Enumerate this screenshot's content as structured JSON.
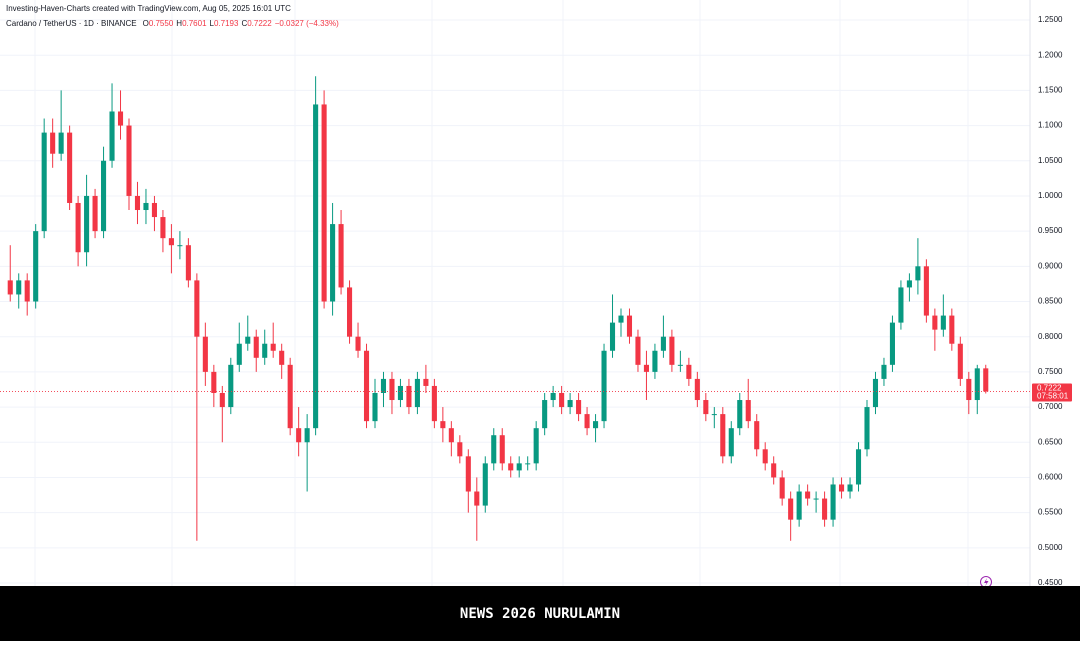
{
  "chart_data": {
    "type": "candlestick",
    "title": "Investing-Haven-Charts created with TradingView.com, Aug 05, 2025 16:01 UTC",
    "symbol": "Cardano / TetherUS · 1D · BINANCE",
    "ohlc": [
      {
        "key": "O",
        "value": "0.7550"
      },
      {
        "key": "H",
        "value": "0.7601"
      },
      {
        "key": "L",
        "value": "0.7193"
      },
      {
        "key": "C",
        "value": "0.7222"
      }
    ],
    "change": "−0.0327 (−4.33%)",
    "last_price": {
      "value": 0.7222,
      "label": "0.7222"
    },
    "countdown": "07:58:01",
    "banner": "NEWS 2026 NURULAMIN",
    "up_color": "#089981",
    "down_color": "#f23645",
    "grid": true,
    "ylim": [
      0.45,
      1.25
    ],
    "yticks": [
      {
        "value": 0.45,
        "label": "0.4500"
      },
      {
        "value": 0.5,
        "label": "0.5000"
      },
      {
        "value": 0.55,
        "label": "0.5500"
      },
      {
        "value": 0.6,
        "label": "0.6000"
      },
      {
        "value": 0.65,
        "label": "0.6500"
      },
      {
        "value": 0.7,
        "label": "0.7000"
      },
      {
        "value": 0.75,
        "label": "0.7500"
      },
      {
        "value": 0.8,
        "label": "0.8000"
      },
      {
        "value": 0.85,
        "label": "0.8500"
      },
      {
        "value": 0.9,
        "label": "0.9000"
      },
      {
        "value": 0.95,
        "label": "0.9500"
      },
      {
        "value": 1.0,
        "label": "1.0000"
      },
      {
        "value": 1.05,
        "label": "1.0500"
      },
      {
        "value": 1.1,
        "label": "1.1000"
      },
      {
        "value": 1.15,
        "label": "1.1500"
      },
      {
        "value": 1.2,
        "label": "1.2000"
      },
      {
        "value": 1.25,
        "label": "1.2500"
      }
    ],
    "candles": [
      [
        0.88,
        0.93,
        0.85,
        0.86
      ],
      [
        0.86,
        0.89,
        0.84,
        0.88
      ],
      [
        0.88,
        0.89,
        0.83,
        0.85
      ],
      [
        0.85,
        0.96,
        0.84,
        0.95
      ],
      [
        0.95,
        1.11,
        0.94,
        1.09
      ],
      [
        1.09,
        1.11,
        1.04,
        1.06
      ],
      [
        1.06,
        1.15,
        1.05,
        1.09
      ],
      [
        1.09,
        1.1,
        0.98,
        0.99
      ],
      [
        0.99,
        1.0,
        0.9,
        0.92
      ],
      [
        0.92,
        1.03,
        0.9,
        1.0
      ],
      [
        1.0,
        1.01,
        0.94,
        0.95
      ],
      [
        0.95,
        1.07,
        0.94,
        1.05
      ],
      [
        1.05,
        1.16,
        1.04,
        1.12
      ],
      [
        1.12,
        1.15,
        1.08,
        1.1
      ],
      [
        1.1,
        1.11,
        0.98,
        1.0
      ],
      [
        1.0,
        1.02,
        0.96,
        0.98
      ],
      [
        0.98,
        1.01,
        0.96,
        0.99
      ],
      [
        0.99,
        1.0,
        0.95,
        0.97
      ],
      [
        0.97,
        0.98,
        0.92,
        0.94
      ],
      [
        0.94,
        0.96,
        0.89,
        0.93
      ],
      [
        0.93,
        0.95,
        0.91,
        0.93
      ],
      [
        0.93,
        0.94,
        0.87,
        0.88
      ],
      [
        0.88,
        0.89,
        0.51,
        0.8
      ],
      [
        0.8,
        0.82,
        0.73,
        0.75
      ],
      [
        0.75,
        0.76,
        0.7,
        0.72
      ],
      [
        0.72,
        0.73,
        0.65,
        0.7
      ],
      [
        0.7,
        0.77,
        0.69,
        0.76
      ],
      [
        0.76,
        0.82,
        0.75,
        0.79
      ],
      [
        0.79,
        0.83,
        0.78,
        0.8
      ],
      [
        0.8,
        0.81,
        0.75,
        0.77
      ],
      [
        0.77,
        0.81,
        0.76,
        0.79
      ],
      [
        0.79,
        0.82,
        0.77,
        0.78
      ],
      [
        0.78,
        0.79,
        0.74,
        0.76
      ],
      [
        0.76,
        0.77,
        0.66,
        0.67
      ],
      [
        0.67,
        0.7,
        0.63,
        0.65
      ],
      [
        0.65,
        0.69,
        0.58,
        0.67
      ],
      [
        0.67,
        1.17,
        0.66,
        1.13
      ],
      [
        1.13,
        1.15,
        0.84,
        0.85
      ],
      [
        0.85,
        0.99,
        0.83,
        0.96
      ],
      [
        0.96,
        0.98,
        0.86,
        0.87
      ],
      [
        0.87,
        0.88,
        0.79,
        0.8
      ],
      [
        0.8,
        0.82,
        0.77,
        0.78
      ],
      [
        0.78,
        0.79,
        0.67,
        0.68
      ],
      [
        0.68,
        0.74,
        0.67,
        0.72
      ],
      [
        0.72,
        0.75,
        0.7,
        0.74
      ],
      [
        0.74,
        0.75,
        0.69,
        0.71
      ],
      [
        0.71,
        0.74,
        0.7,
        0.73
      ],
      [
        0.73,
        0.74,
        0.69,
        0.7
      ],
      [
        0.7,
        0.75,
        0.69,
        0.74
      ],
      [
        0.74,
        0.76,
        0.72,
        0.73
      ],
      [
        0.73,
        0.74,
        0.67,
        0.68
      ],
      [
        0.68,
        0.7,
        0.65,
        0.67
      ],
      [
        0.67,
        0.68,
        0.63,
        0.65
      ],
      [
        0.65,
        0.66,
        0.62,
        0.63
      ],
      [
        0.63,
        0.64,
        0.55,
        0.58
      ],
      [
        0.58,
        0.6,
        0.51,
        0.56
      ],
      [
        0.56,
        0.63,
        0.55,
        0.62
      ],
      [
        0.62,
        0.67,
        0.61,
        0.66
      ],
      [
        0.66,
        0.67,
        0.61,
        0.62
      ],
      [
        0.62,
        0.63,
        0.6,
        0.61
      ],
      [
        0.61,
        0.63,
        0.6,
        0.62
      ],
      [
        0.62,
        0.63,
        0.61,
        0.62
      ],
      [
        0.62,
        0.68,
        0.61,
        0.67
      ],
      [
        0.67,
        0.72,
        0.66,
        0.71
      ],
      [
        0.71,
        0.73,
        0.7,
        0.72
      ],
      [
        0.72,
        0.73,
        0.69,
        0.7
      ],
      [
        0.7,
        0.72,
        0.69,
        0.71
      ],
      [
        0.71,
        0.72,
        0.68,
        0.69
      ],
      [
        0.69,
        0.7,
        0.66,
        0.67
      ],
      [
        0.67,
        0.69,
        0.65,
        0.68
      ],
      [
        0.68,
        0.79,
        0.67,
        0.78
      ],
      [
        0.78,
        0.86,
        0.77,
        0.82
      ],
      [
        0.82,
        0.84,
        0.8,
        0.83
      ],
      [
        0.83,
        0.84,
        0.79,
        0.8
      ],
      [
        0.8,
        0.81,
        0.75,
        0.76
      ],
      [
        0.76,
        0.78,
        0.71,
        0.75
      ],
      [
        0.75,
        0.79,
        0.74,
        0.78
      ],
      [
        0.78,
        0.83,
        0.77,
        0.8
      ],
      [
        0.8,
        0.81,
        0.75,
        0.76
      ],
      [
        0.76,
        0.78,
        0.75,
        0.76
      ],
      [
        0.76,
        0.77,
        0.73,
        0.74
      ],
      [
        0.74,
        0.75,
        0.7,
        0.71
      ],
      [
        0.71,
        0.72,
        0.68,
        0.69
      ],
      [
        0.69,
        0.7,
        0.67,
        0.69
      ],
      [
        0.69,
        0.7,
        0.62,
        0.63
      ],
      [
        0.63,
        0.68,
        0.62,
        0.67
      ],
      [
        0.67,
        0.72,
        0.66,
        0.71
      ],
      [
        0.71,
        0.74,
        0.67,
        0.68
      ],
      [
        0.68,
        0.69,
        0.63,
        0.64
      ],
      [
        0.64,
        0.65,
        0.61,
        0.62
      ],
      [
        0.62,
        0.63,
        0.59,
        0.6
      ],
      [
        0.6,
        0.61,
        0.56,
        0.57
      ],
      [
        0.57,
        0.58,
        0.51,
        0.54
      ],
      [
        0.54,
        0.59,
        0.53,
        0.58
      ],
      [
        0.58,
        0.59,
        0.56,
        0.57
      ],
      [
        0.57,
        0.58,
        0.55,
        0.57
      ],
      [
        0.57,
        0.58,
        0.53,
        0.54
      ],
      [
        0.54,
        0.6,
        0.53,
        0.59
      ],
      [
        0.59,
        0.6,
        0.57,
        0.58
      ],
      [
        0.58,
        0.6,
        0.57,
        0.59
      ],
      [
        0.59,
        0.65,
        0.58,
        0.64
      ],
      [
        0.64,
        0.71,
        0.63,
        0.7
      ],
      [
        0.7,
        0.75,
        0.69,
        0.74
      ],
      [
        0.74,
        0.77,
        0.73,
        0.76
      ],
      [
        0.76,
        0.83,
        0.75,
        0.82
      ],
      [
        0.82,
        0.88,
        0.81,
        0.87
      ],
      [
        0.87,
        0.89,
        0.85,
        0.88
      ],
      [
        0.88,
        0.94,
        0.86,
        0.9
      ],
      [
        0.9,
        0.91,
        0.82,
        0.83
      ],
      [
        0.83,
        0.84,
        0.78,
        0.81
      ],
      [
        0.81,
        0.86,
        0.8,
        0.83
      ],
      [
        0.83,
        0.84,
        0.78,
        0.79
      ],
      [
        0.79,
        0.8,
        0.73,
        0.74
      ],
      [
        0.74,
        0.75,
        0.69,
        0.71
      ],
      [
        0.71,
        0.76,
        0.69,
        0.755
      ],
      [
        0.755,
        0.7601,
        0.7193,
        0.7222
      ]
    ]
  }
}
